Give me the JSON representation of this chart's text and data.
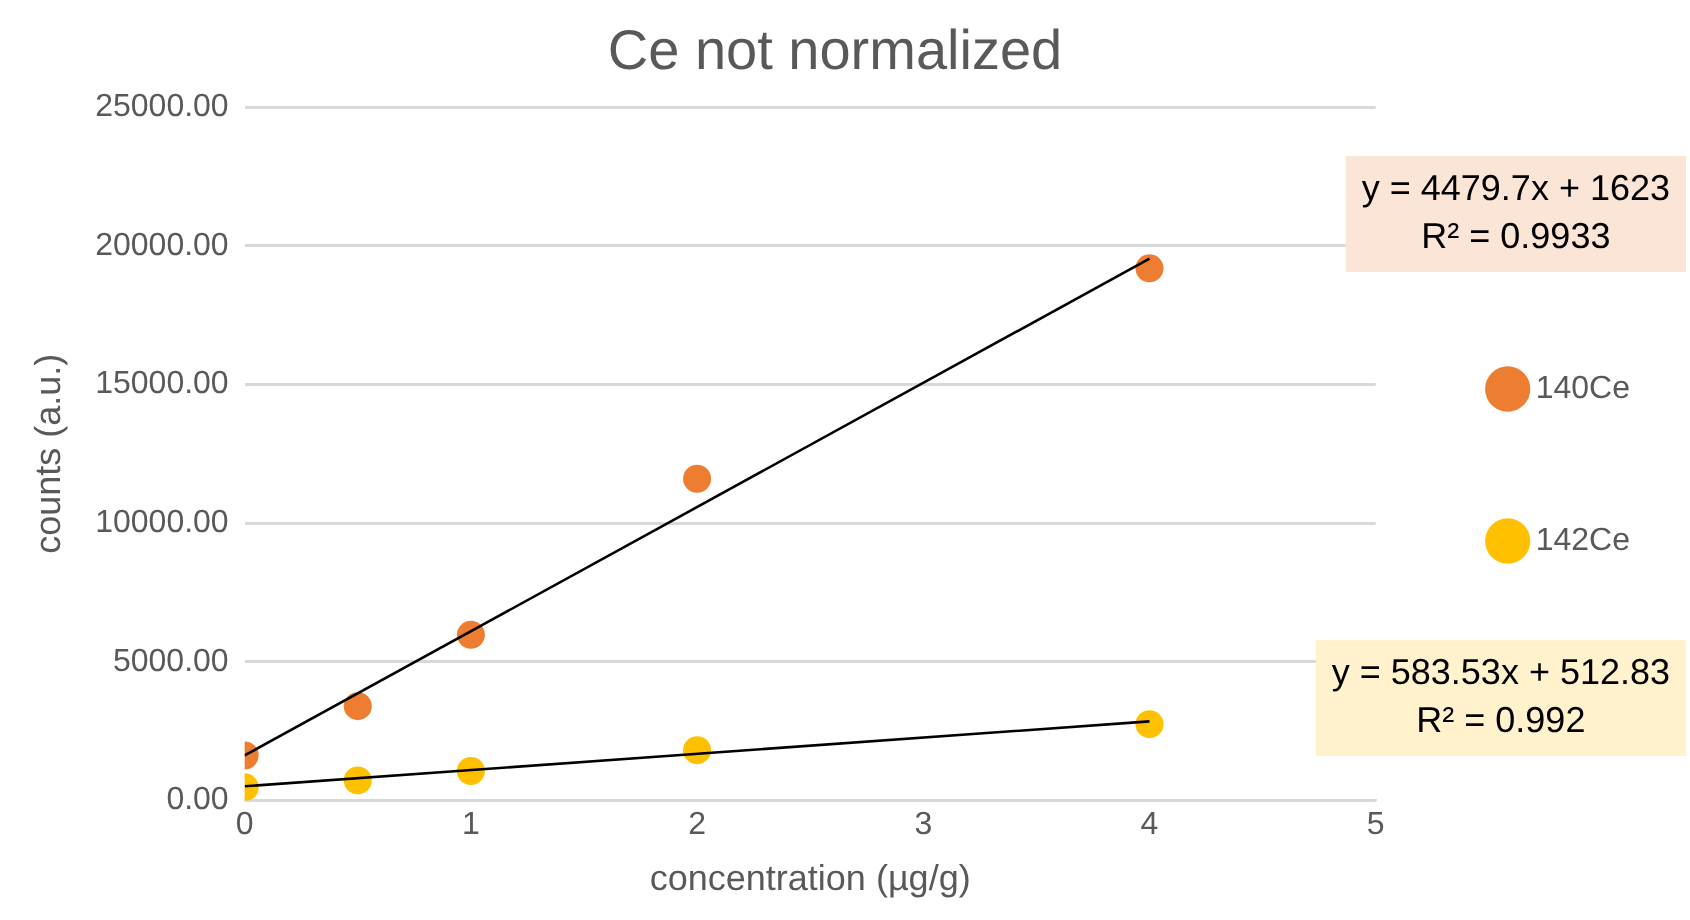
{
  "chart_data": {
    "type": "scatter",
    "title": "Ce not normalized",
    "xlabel": "concentration (µg/g)",
    "ylabel": "counts (a.u.)",
    "xlim": [
      0,
      5
    ],
    "xticks": [
      0,
      1,
      2,
      3,
      4,
      5
    ],
    "ylim": [
      0,
      25000
    ],
    "yticks": [
      {
        "value": 0,
        "label": "0.00"
      },
      {
        "value": 5000,
        "label": "5000.00"
      },
      {
        "value": 10000,
        "label": "10000.00"
      },
      {
        "value": 15000,
        "label": "15000.00"
      },
      {
        "value": 20000,
        "label": "20000.00"
      },
      {
        "value": 25000,
        "label": "25000.00"
      }
    ],
    "grid": "y",
    "legend": "right",
    "series": [
      {
        "name": "140Ce",
        "color": "#ed7d31",
        "x": [
          0,
          0.5,
          1,
          2,
          4
        ],
        "values": [
          1620,
          3400,
          5970,
          11600,
          19190
        ],
        "marker": "circle"
      },
      {
        "name": "142Ce",
        "color": "#ffc000",
        "x": [
          0,
          0.5,
          1,
          2,
          4
        ],
        "values": [
          470,
          720,
          1060,
          1810,
          2750
        ],
        "marker": "circle"
      },
      {
        "type": "line",
        "color": "#000000",
        "x": [
          0,
          4
        ],
        "values": [
          1620,
          19540
        ],
        "marker": "none"
      },
      {
        "type": "line",
        "color": "#000000",
        "x": [
          0,
          4
        ],
        "values": [
          510,
          2850
        ],
        "marker": "none"
      }
    ],
    "annotations": [
      "y = 4479.7x + 1623\nR² = 0.9933",
      "y = 583.53x + 512.83\nR² = 0.992"
    ]
  }
}
